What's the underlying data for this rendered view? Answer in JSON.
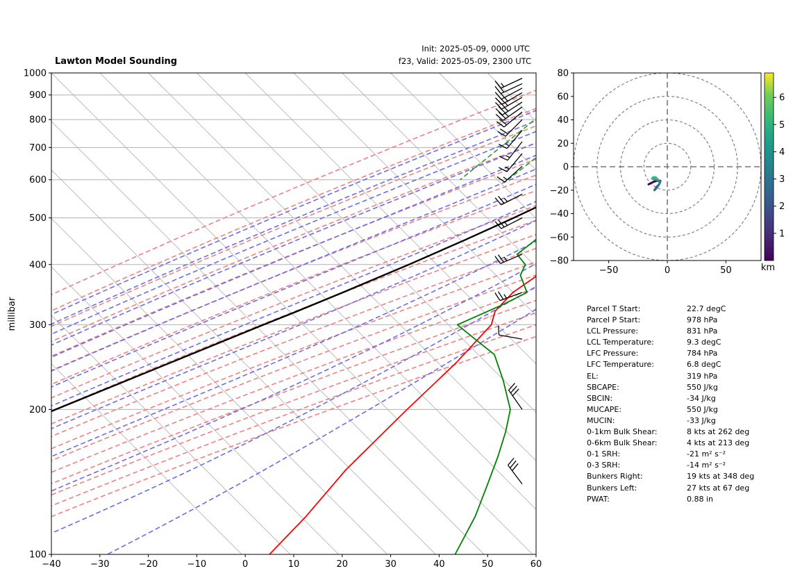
{
  "chart_data": [
    {
      "type": "skew-t",
      "title": "Lawton Model Sounding",
      "init_label": "Init: 2025-05-09, 0000 UTC",
      "valid_label": "f23, Valid: 2025-05-09, 2300 UTC",
      "ylabel": "millibar",
      "xlabel": "",
      "xlim": [
        -40,
        60
      ],
      "ylim": [
        1000,
        100
      ],
      "y_scale": "log",
      "x_ticks": [
        "−40",
        "−30",
        "−20",
        "−10",
        "0",
        "10",
        "20",
        "30",
        "40",
        "50",
        "60"
      ],
      "y_ticks": [
        "100",
        "200",
        "300",
        "400",
        "500",
        "600",
        "700",
        "800",
        "900",
        "1000"
      ],
      "grid": true,
      "series": [
        {
          "name": "",
          "role": "temperature",
          "color": "#ff0000",
          "p": [
            978,
            960,
            925,
            900,
            875,
            850,
            800,
            750,
            700,
            650,
            600,
            550,
            500,
            450,
            400,
            350,
            320,
            300,
            250,
            200,
            150,
            120,
            100
          ],
          "t": [
            22.7,
            21.2,
            19.7,
            18.4,
            17.0,
            16.1,
            15.6,
            14.7,
            14.3,
            12.8,
            13.4,
            12.1,
            10.1,
            6.5,
            3.7,
            1.2,
            1.4,
            3.4,
            4.0,
            3.5,
            3.3,
            4.7,
            5.0
          ]
        },
        {
          "name": "",
          "role": "dewpoint",
          "color": "#008000",
          "p": [
            978,
            950,
            925,
            900,
            875,
            850,
            820,
            800,
            780,
            750,
            720,
            700,
            680,
            650,
            620,
            600,
            570,
            540,
            500,
            460,
            420,
            400,
            380,
            350,
            330,
            300,
            280,
            260,
            230,
            200,
            180,
            160,
            140,
            120,
            100
          ],
          "t": [
            12.0,
            10.6,
            9.7,
            8.6,
            7.0,
            5.2,
            2.6,
            1.7,
            1.1,
            -2.8,
            -6.4,
            -10.1,
            -7.8,
            -2.8,
            0.3,
            -1.0,
            -2.2,
            -4.7,
            -4.7,
            -4.7,
            -5.8,
            -2.0,
            -0.8,
            4.1,
            1.6,
            -3.6,
            3.0,
            10.2,
            17.3,
            24.8,
            28.4,
            31.9,
            35.5,
            39.6,
            43.3
          ]
        },
        {
          "name": "",
          "role": "parcel",
          "color": "#000000",
          "p": [
            978,
            950,
            900,
            850,
            831,
            800,
            750,
            700,
            650,
            600,
            550,
            500,
            450,
            400,
            350,
            319,
            300,
            250,
            200,
            150,
            120,
            100
          ],
          "t": [
            22.7,
            20.3,
            15.7,
            11.0,
            9.3,
            7.6,
            4.8,
            1.8,
            -1.5,
            -5.2,
            -9.4,
            -14.0,
            -19.5,
            -26.0,
            -33.9,
            -39.6,
            -43.6,
            -55.0,
            -69.0,
            -85.0,
            -98.0,
            -106.0
          ]
        }
      ],
      "isotherms_c": [
        -100,
        -90,
        -80,
        -70,
        -60,
        -50,
        -40,
        -30,
        -20,
        -10,
        0,
        10,
        20,
        30,
        40,
        50,
        60
      ],
      "dry_adiabats_theta_c": [
        -30,
        -20,
        -10,
        0,
        10,
        20,
        30,
        40,
        50,
        60,
        70,
        80,
        90,
        100,
        110,
        120,
        130,
        140
      ],
      "moist_adiabats_start_c": [
        -20,
        -15,
        -10,
        -5,
        0,
        5,
        10,
        15,
        20,
        25,
        30,
        35,
        40
      ],
      "mixing_ratio_lines_g_per_kg": [
        0.4,
        1,
        2,
        3,
        5,
        8,
        12,
        16,
        20,
        24,
        28,
        32
      ],
      "wind_barbs": {
        "color": "#000000",
        "p": [
          975,
          950,
          930,
          910,
          890,
          870,
          850,
          830,
          800,
          760,
          720,
          680,
          640,
          560,
          500,
          420,
          350,
          280,
          200,
          140
        ],
        "speed_kt": [
          17,
          19,
          22,
          24,
          26,
          27,
          24,
          21,
          18,
          15,
          14,
          13,
          17,
          23,
          27,
          25,
          27,
          10,
          29,
          32
        ],
        "direction_deg": [
          245,
          245,
          242,
          240,
          240,
          237,
          235,
          230,
          225,
          220,
          218,
          220,
          228,
          243,
          243,
          247,
          250,
          280,
          325,
          323
        ]
      }
    },
    {
      "type": "hodograph",
      "x_ticks": [
        "−50",
        "0",
        "50"
      ],
      "y_ticks": [
        "80",
        "60",
        "40",
        "20",
        "0",
        "−20",
        "−40",
        "−60",
        "−80"
      ],
      "xlim": [
        -80,
        80
      ],
      "ylim": [
        -80,
        80
      ],
      "rings": [
        20,
        40,
        60,
        80
      ],
      "colorbar_label": "km",
      "colorbar_ticks": [
        "1",
        "2",
        "3",
        "4",
        "5",
        "6"
      ],
      "colorbar_range": [
        0,
        6.9
      ],
      "colormap": "viridis",
      "height_km": [
        0.1,
        0.4,
        0.8,
        1.2,
        1.6,
        2.0,
        2.4,
        2.8,
        3.2,
        3.6,
        4.0,
        4.4,
        4.8,
        5.2,
        5.6,
        6.0
      ],
      "u": [
        -16,
        -12,
        -9,
        -6,
        -7,
        -10,
        -11,
        -9,
        -7,
        -6,
        -8,
        -11,
        -13,
        -12,
        -10,
        -8
      ],
      "v": [
        -15,
        -13,
        -12,
        -12,
        -15,
        -19,
        -20,
        -17,
        -15,
        -13,
        -11,
        -11,
        -10,
        -9,
        -9,
        -11
      ]
    }
  ],
  "parameters": [
    {
      "label": "Parcel T Start:",
      "value": "22.7 degC"
    },
    {
      "label": "Parcel P Start:",
      "value": "978 hPa"
    },
    {
      "label": "LCL Pressure:",
      "value": "831 hPa"
    },
    {
      "label": "LCL Temperature:",
      "value": "9.3 degC"
    },
    {
      "label": "LFC Pressure:",
      "value": "784 hPa"
    },
    {
      "label": "LFC Temperature:",
      "value": "6.8 degC"
    },
    {
      "label": "EL:",
      "value": "319 hPa"
    },
    {
      "label": "SBCAPE:",
      "value": "550 J/kg"
    },
    {
      "label": "SBCIN:",
      "value": "-34 J/kg"
    },
    {
      "label": "MUCAPE:",
      "value": "550 J/kg"
    },
    {
      "label": "MUCIN:",
      "value": "-33 J/kg"
    },
    {
      "label": "0-1km Bulk Shear:",
      "value": "8 kts at 262 deg"
    },
    {
      "label": "0-6km Bulk Shear:",
      "value": "4 kts at 213 deg"
    },
    {
      "label": "0-1 SRH:",
      "value": "-21 m² s⁻²"
    },
    {
      "label": "0-3 SRH:",
      "value": "-14 m² s⁻²"
    },
    {
      "label": "Bunkers Right:",
      "value": "19 kts at 348 deg"
    },
    {
      "label": "Bunkers Left:",
      "value": "27 kts at 67 deg"
    },
    {
      "label": "PWAT:",
      "value": "0.88 in"
    }
  ],
  "colors": {
    "temperature": "#ff0000",
    "dewpoint": "#008000",
    "parcel": "#000000",
    "dry_adiabat": "#f08080",
    "moist_adiabat": "#6a6aee",
    "mixing_ratio": "#239b23",
    "isotherm": "#b4b4b4",
    "zero_isotherm": "#8a3fc9",
    "grid": "#b0b0b0"
  }
}
